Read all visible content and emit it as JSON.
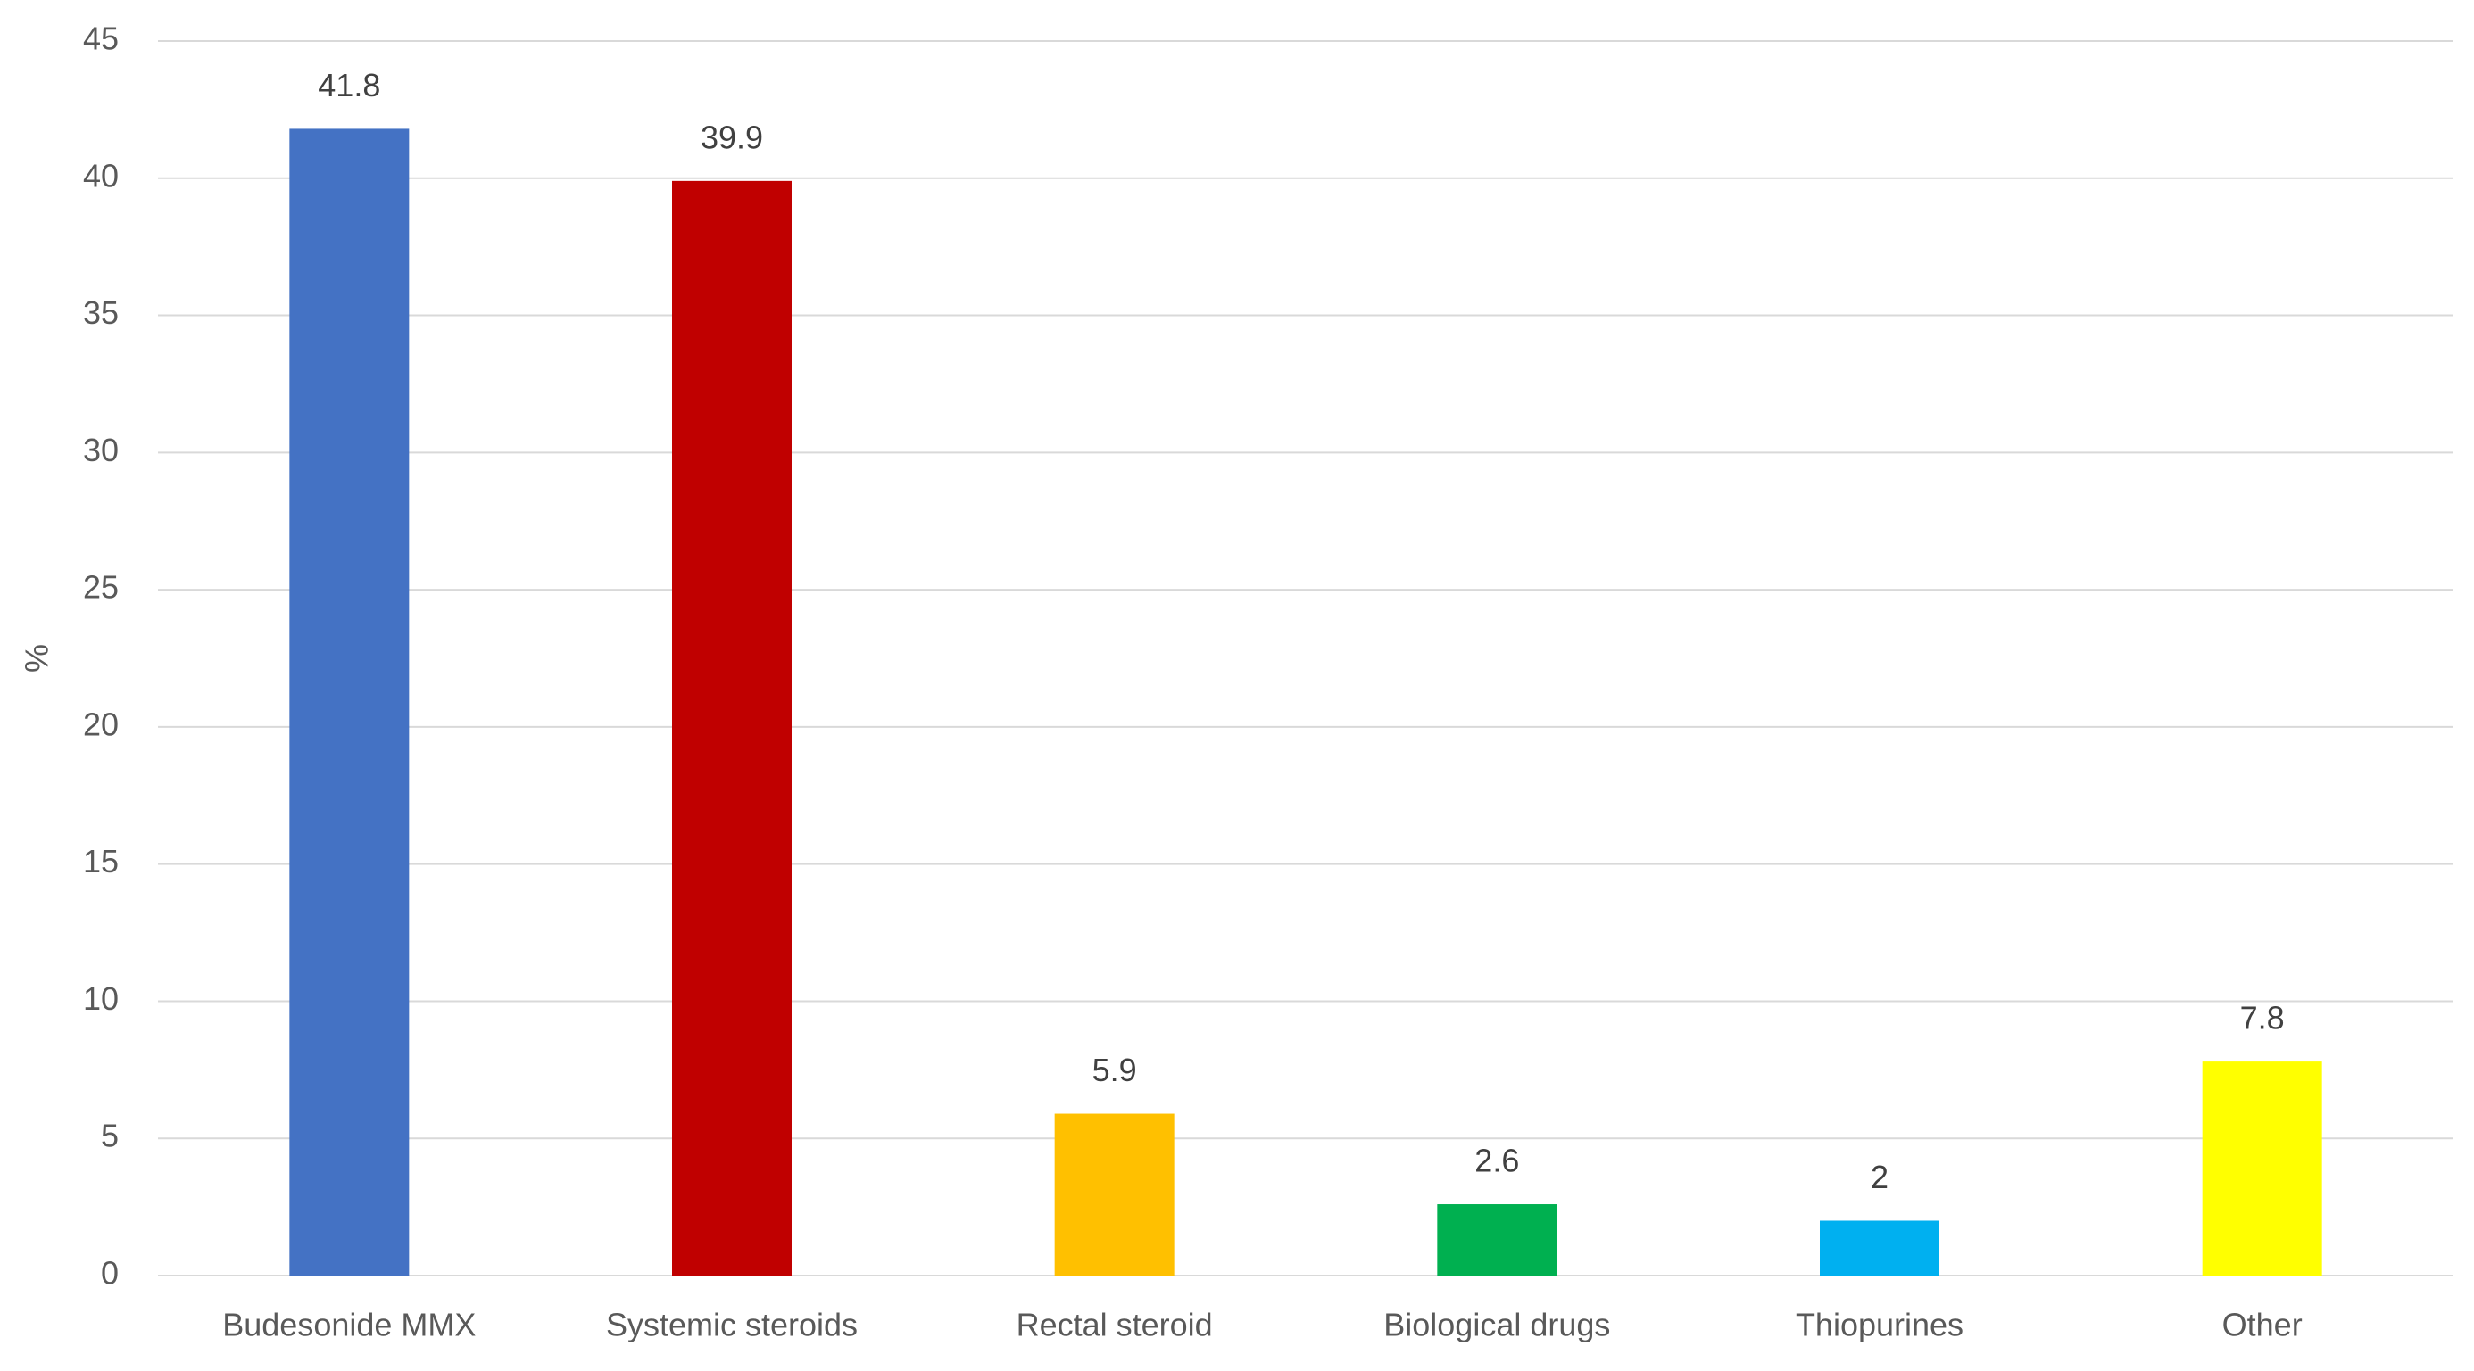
{
  "chart_data": {
    "type": "bar",
    "y_label": "%",
    "categories": [
      "Budesonide MMX",
      "Systemic steroids",
      "Rectal steroid",
      "Biological drugs",
      "Thiopurines",
      "Other"
    ],
    "values": [
      41.8,
      39.9,
      5.9,
      2.6,
      2,
      7.8
    ],
    "colors": [
      "#4472c4",
      "#c00000",
      "#ffc000",
      "#00b050",
      "#00b0f0",
      "#ffff00"
    ],
    "ylim": [
      0,
      45
    ],
    "yticks": [
      0,
      5,
      10,
      15,
      20,
      25,
      30,
      35,
      40,
      45
    ],
    "grid": true
  }
}
